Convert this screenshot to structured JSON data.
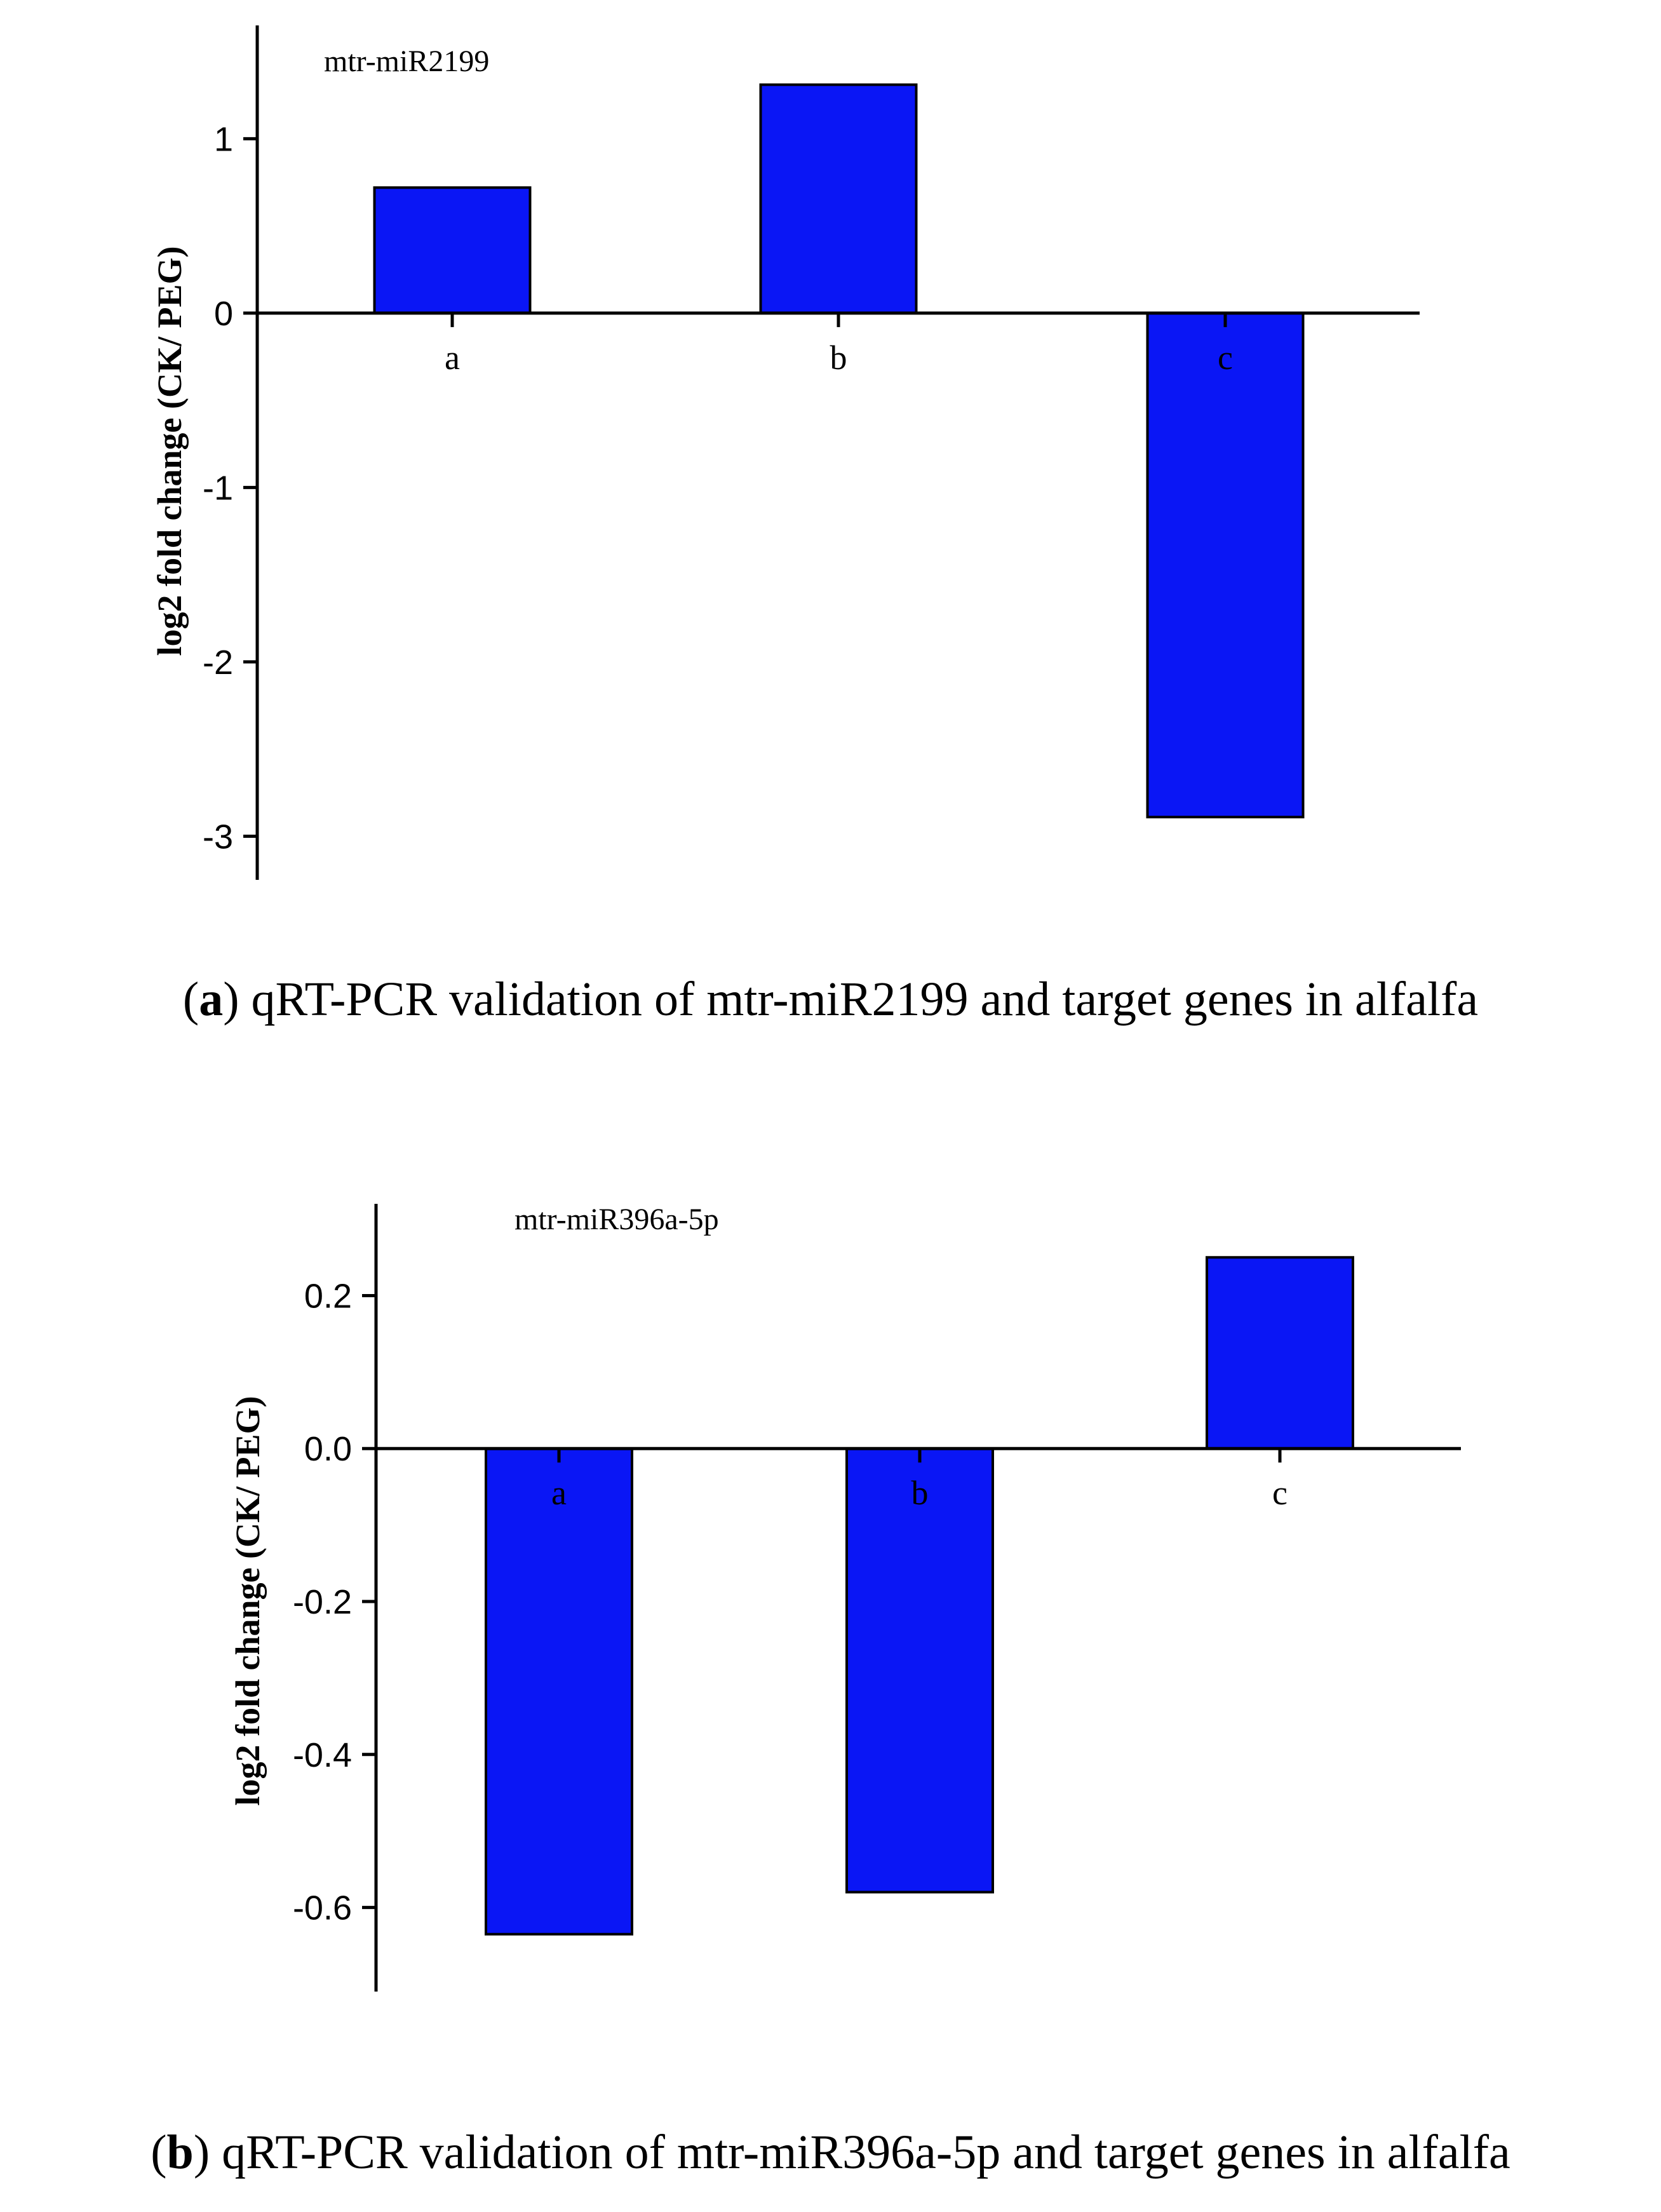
{
  "chart_data": [
    {
      "type": "bar",
      "title": "mtr-miR2199",
      "ylabel": "log2 fold change (CK/ PEG)",
      "xlabel": "",
      "categories": [
        "a",
        "b",
        "c"
      ],
      "values": [
        0.72,
        1.31,
        -2.89
      ],
      "ylim": [
        -3.25,
        1.65
      ],
      "yticks": [
        1,
        0,
        -1,
        -2,
        -3
      ],
      "ytick_labels": [
        "1",
        "0",
        "-1",
        "-2",
        "-3"
      ],
      "color": "#0A16F5",
      "grid": false,
      "caption_letter": "a",
      "caption_text": "qRT-PCR validation of mtr-miR2199 and target genes in alfalfa"
    },
    {
      "type": "bar",
      "title": "mtr-miR396a-5p",
      "ylabel": "log2 fold change (CK/ PEG)",
      "xlabel": "",
      "categories": [
        "a",
        "b",
        "c"
      ],
      "values": [
        -0.635,
        -0.58,
        0.25
      ],
      "ylim": [
        -0.71,
        0.32
      ],
      "yticks": [
        0.2,
        0.0,
        -0.2,
        -0.4,
        -0.6
      ],
      "ytick_labels": [
        "0.2",
        "0.0",
        "-0.2",
        "-0.4",
        "-0.6"
      ],
      "color": "#0A16F5",
      "grid": false,
      "caption_letter": "b",
      "caption_text": "qRT-PCR validation of mtr-miR396a-5p and target genes in alfalfa"
    }
  ]
}
